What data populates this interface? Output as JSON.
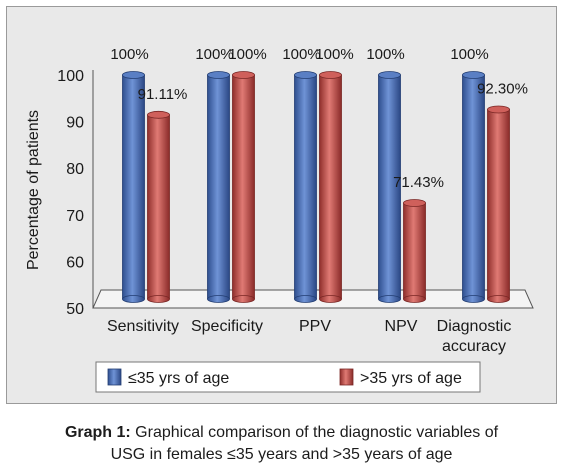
{
  "chart_data": {
    "type": "bar",
    "ylabel": "Percentage of patients",
    "ylim": [
      50,
      100
    ],
    "yticks": [
      "50",
      "60",
      "70",
      "80",
      "90",
      "100"
    ],
    "categories": [
      "Sensitivity",
      "Specificity",
      "PPV",
      "NPV",
      "Diagnostic accuracy"
    ],
    "series": [
      {
        "name": "≤35 yrs of age",
        "values": [
          100,
          100,
          100,
          100,
          100
        ],
        "labels": [
          "100%",
          "100%",
          "100%",
          "100%",
          "100%"
        ],
        "color": "#4a6fb5"
      },
      {
        "name": ">35 yrs of age",
        "values": [
          91.11,
          100,
          100,
          71.43,
          92.3
        ],
        "labels": [
          "91.11%",
          "100%",
          "100%",
          "71.43%",
          "92.30%"
        ],
        "color": "#c0504d"
      }
    ],
    "legend": "bottom",
    "grid": false
  },
  "caption": {
    "label": "Graph 1:",
    "line1": " Graphical comparison of the diagnostic variables of",
    "line2": "USG in females ≤35 years and >35 years of age"
  }
}
